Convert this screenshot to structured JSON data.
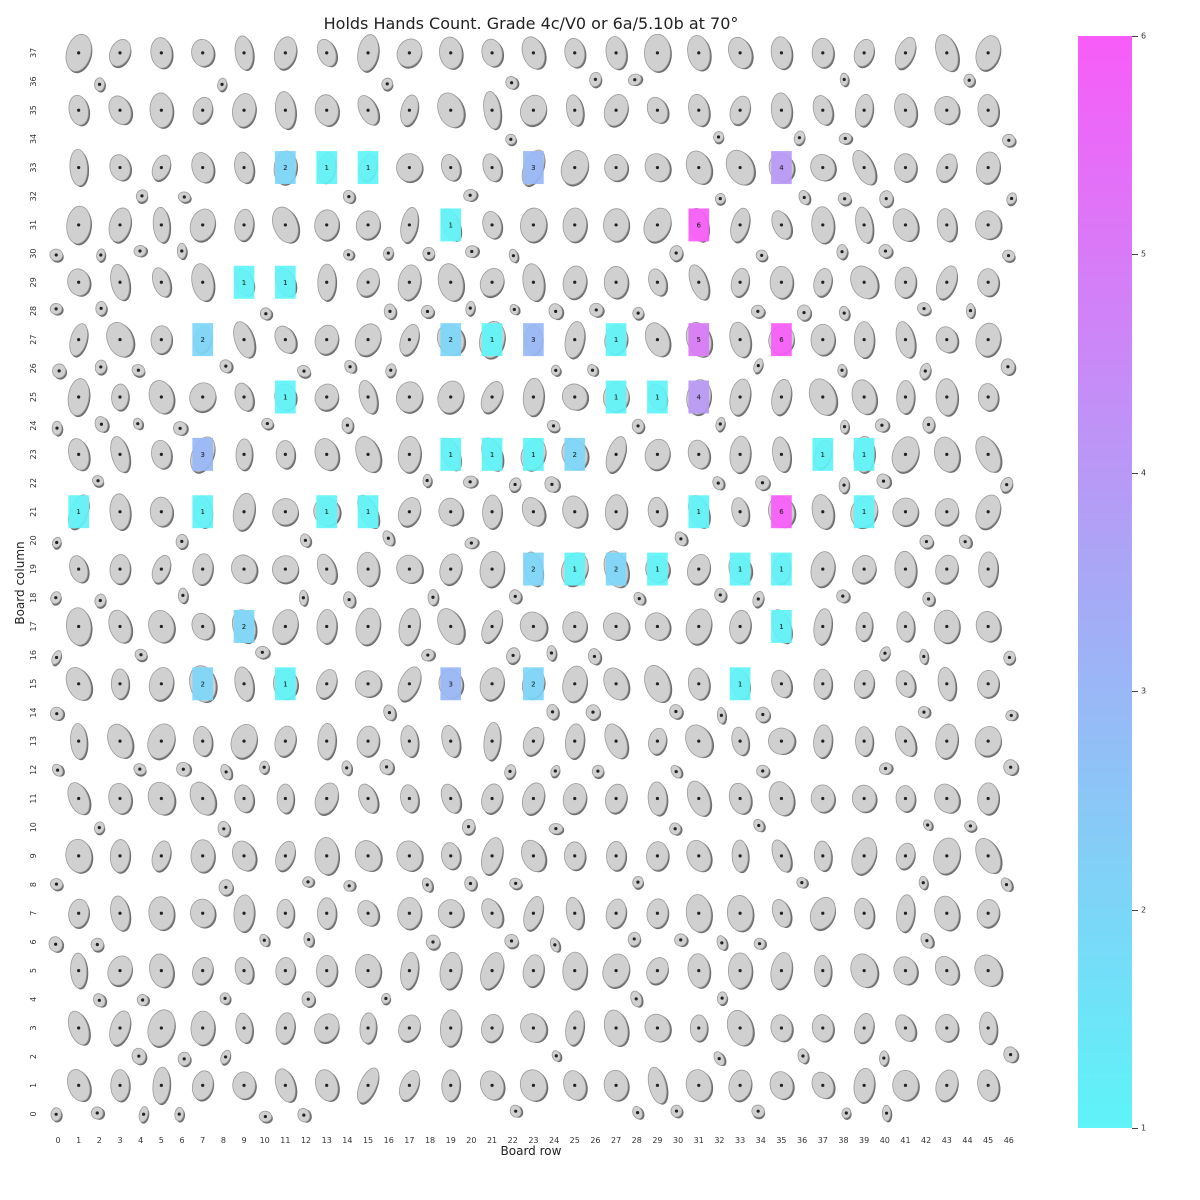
{
  "chart_data": {
    "type": "heatmap",
    "title": "Holds Hands Count. Grade 4c/V0 or 6a/5.10b at 70°",
    "xlabel": "Board row",
    "ylabel": "Board column",
    "x_ticks": [
      "0",
      "1",
      "2",
      "3",
      "4",
      "5",
      "6",
      "7",
      "8",
      "9",
      "10",
      "11",
      "12",
      "13",
      "14",
      "15",
      "16",
      "17",
      "18",
      "19",
      "20",
      "21",
      "22",
      "23",
      "24",
      "25",
      "26",
      "27",
      "28",
      "29",
      "30",
      "31",
      "32",
      "33",
      "34",
      "35",
      "36",
      "37",
      "38",
      "39",
      "40",
      "41",
      "42",
      "43",
      "44",
      "45",
      "46"
    ],
    "y_ticks": [
      "0",
      "1",
      "2",
      "3",
      "4",
      "5",
      "6",
      "7",
      "8",
      "9",
      "10",
      "11",
      "12",
      "13",
      "14",
      "15",
      "16",
      "17",
      "18",
      "19",
      "20",
      "21",
      "22",
      "23",
      "24",
      "25",
      "26",
      "27",
      "28",
      "29",
      "30",
      "31",
      "32",
      "33",
      "34",
      "35",
      "36",
      "37"
    ],
    "xlim": [
      0,
      46
    ],
    "ylim": [
      0,
      37
    ],
    "colorbar": {
      "range": [
        1,
        6
      ],
      "ticks": [
        "1",
        "2",
        "3",
        "4",
        "5",
        "6"
      ],
      "colors": [
        "#5ef4f8",
        "#a8a8f6",
        "#f85cf8"
      ]
    },
    "cells": [
      {
        "x": 11,
        "y": 33,
        "value": 2
      },
      {
        "x": 13,
        "y": 33,
        "value": 1
      },
      {
        "x": 15,
        "y": 33,
        "value": 1
      },
      {
        "x": 23,
        "y": 33,
        "value": 3
      },
      {
        "x": 35,
        "y": 33,
        "value": 4
      },
      {
        "x": 19,
        "y": 31,
        "value": 1
      },
      {
        "x": 31,
        "y": 31,
        "value": 6
      },
      {
        "x": 9,
        "y": 29,
        "value": 1
      },
      {
        "x": 11,
        "y": 29,
        "value": 1
      },
      {
        "x": 7,
        "y": 27,
        "value": 2
      },
      {
        "x": 19,
        "y": 27,
        "value": 2
      },
      {
        "x": 21,
        "y": 27,
        "value": 1
      },
      {
        "x": 23,
        "y": 27,
        "value": 3
      },
      {
        "x": 27,
        "y": 27,
        "value": 1
      },
      {
        "x": 31,
        "y": 27,
        "value": 5
      },
      {
        "x": 35,
        "y": 27,
        "value": 6
      },
      {
        "x": 11,
        "y": 25,
        "value": 1
      },
      {
        "x": 27,
        "y": 25,
        "value": 1
      },
      {
        "x": 29,
        "y": 25,
        "value": 1
      },
      {
        "x": 31,
        "y": 25,
        "value": 4
      },
      {
        "x": 7,
        "y": 23,
        "value": 3
      },
      {
        "x": 19,
        "y": 23,
        "value": 1
      },
      {
        "x": 21,
        "y": 23,
        "value": 1
      },
      {
        "x": 23,
        "y": 23,
        "value": 1
      },
      {
        "x": 25,
        "y": 23,
        "value": 2
      },
      {
        "x": 37,
        "y": 23,
        "value": 1
      },
      {
        "x": 39,
        "y": 23,
        "value": 1
      },
      {
        "x": 1,
        "y": 21,
        "value": 1
      },
      {
        "x": 7,
        "y": 21,
        "value": 1
      },
      {
        "x": 13,
        "y": 21,
        "value": 1
      },
      {
        "x": 15,
        "y": 21,
        "value": 1
      },
      {
        "x": 31,
        "y": 21,
        "value": 1
      },
      {
        "x": 35,
        "y": 21,
        "value": 6
      },
      {
        "x": 39,
        "y": 21,
        "value": 1
      },
      {
        "x": 23,
        "y": 19,
        "value": 2
      },
      {
        "x": 25,
        "y": 19,
        "value": 1
      },
      {
        "x": 27,
        "y": 19,
        "value": 2
      },
      {
        "x": 29,
        "y": 19,
        "value": 1
      },
      {
        "x": 33,
        "y": 19,
        "value": 1
      },
      {
        "x": 35,
        "y": 19,
        "value": 1
      },
      {
        "x": 9,
        "y": 17,
        "value": 2
      },
      {
        "x": 35,
        "y": 17,
        "value": 1
      },
      {
        "x": 7,
        "y": 15,
        "value": 2
      },
      {
        "x": 11,
        "y": 15,
        "value": 1
      },
      {
        "x": 19,
        "y": 15,
        "value": 3
      },
      {
        "x": 23,
        "y": 15,
        "value": 2
      },
      {
        "x": 33,
        "y": 15,
        "value": 1
      }
    ]
  }
}
